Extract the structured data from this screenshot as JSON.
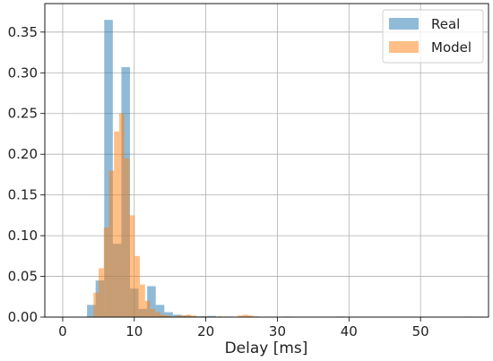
{
  "chart_data": {
    "type": "bar",
    "title": "",
    "xlabel": "Delay [ms]",
    "ylabel": "",
    "xlim": [
      -2.5,
      59.5
    ],
    "ylim": [
      0,
      0.385
    ],
    "xticks": [
      "0",
      "10",
      "20",
      "30",
      "40",
      "50"
    ],
    "yticks": [
      "0.00",
      "0.05",
      "0.10",
      "0.15",
      "0.20",
      "0.25",
      "0.30",
      "0.35"
    ],
    "grid": true,
    "legend_position": "top-right",
    "series": [
      {
        "name": "Real",
        "color": "#1f77b4",
        "opacity": 0.5,
        "bin_width": 1.2,
        "bins": [
          {
            "x0": 3.4,
            "y": 0.015
          },
          {
            "x0": 4.6,
            "y": 0.045
          },
          {
            "x0": 5.8,
            "y": 0.365
          },
          {
            "x0": 7.0,
            "y": 0.09
          },
          {
            "x0": 8.2,
            "y": 0.307
          },
          {
            "x0": 9.4,
            "y": 0.035
          },
          {
            "x0": 10.6,
            "y": 0.01
          },
          {
            "x0": 11.8,
            "y": 0.038
          },
          {
            "x0": 13.0,
            "y": 0.015
          },
          {
            "x0": 14.2,
            "y": 0.006
          },
          {
            "x0": 15.4,
            "y": 0.003
          },
          {
            "x0": 16.6,
            "y": 0.002
          },
          {
            "x0": 17.8,
            "y": 0.001
          },
          {
            "x0": 19.0,
            "y": 0.001
          },
          {
            "x0": 20.2,
            "y": 0.0015
          },
          {
            "x0": 22.6,
            "y": 0.0005
          },
          {
            "x0": 25.0,
            "y": 0.0005
          },
          {
            "x0": 31.0,
            "y": 0.0005
          },
          {
            "x0": 38.2,
            "y": 0.0005
          },
          {
            "x0": 56.2,
            "y": 0.0005
          }
        ]
      },
      {
        "name": "Model",
        "color": "#ff7f0e",
        "opacity": 0.5,
        "bin_width": 0.72,
        "bins": [
          {
            "x0": 4.3,
            "y": 0.03
          },
          {
            "x0": 5.02,
            "y": 0.06
          },
          {
            "x0": 5.74,
            "y": 0.11
          },
          {
            "x0": 6.46,
            "y": 0.18
          },
          {
            "x0": 7.18,
            "y": 0.228
          },
          {
            "x0": 7.9,
            "y": 0.25
          },
          {
            "x0": 8.62,
            "y": 0.195
          },
          {
            "x0": 9.34,
            "y": 0.125
          },
          {
            "x0": 10.06,
            "y": 0.075
          },
          {
            "x0": 10.78,
            "y": 0.04
          },
          {
            "x0": 11.5,
            "y": 0.02
          },
          {
            "x0": 12.22,
            "y": 0.01
          },
          {
            "x0": 12.94,
            "y": 0.006
          },
          {
            "x0": 13.66,
            "y": 0.003
          },
          {
            "x0": 14.38,
            "y": 0.002
          },
          {
            "x0": 15.82,
            "y": 0.002
          },
          {
            "x0": 16.54,
            "y": 0.002
          },
          {
            "x0": 17.26,
            "y": 0.003
          },
          {
            "x0": 17.98,
            "y": 0.002
          },
          {
            "x0": 19.42,
            "y": 0.001
          },
          {
            "x0": 21.58,
            "y": 0.001
          },
          {
            "x0": 24.46,
            "y": 0.002
          },
          {
            "x0": 25.18,
            "y": 0.003
          },
          {
            "x0": 25.9,
            "y": 0.002
          },
          {
            "x0": 26.62,
            "y": 0.001
          }
        ]
      }
    ]
  }
}
